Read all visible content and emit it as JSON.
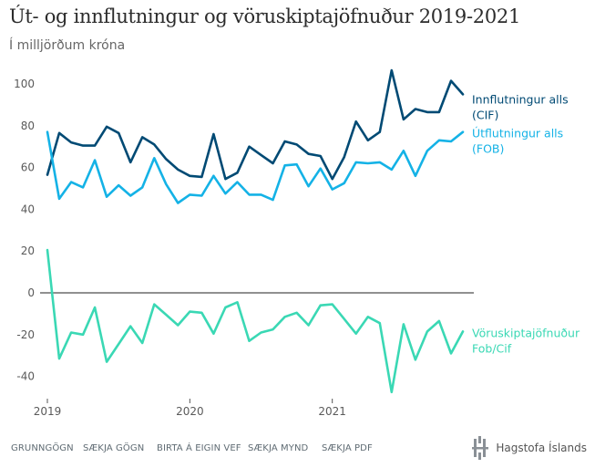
{
  "title": "Út- og innflutningur og vöruskiptajöfnuður 2019-2021",
  "subtitle": "Í milljörðum króna",
  "chart_data": {
    "type": "line",
    "x_tick_labels": [
      "2019",
      "2020",
      "2021"
    ],
    "x_start": "2019-01",
    "y_ticks": [
      100,
      80,
      60,
      40,
      20,
      0,
      -20,
      -40
    ],
    "ylim": [
      -48,
      108
    ],
    "grid": false,
    "legend": "inline labels at line ends",
    "series": [
      {
        "name": "Innflutningur alls (CIF)",
        "label_lines": [
          "Innflutningur alls",
          "(CIF)"
        ],
        "color": "#004a74",
        "values": [
          56.5,
          76.5,
          72,
          70.5,
          70.5,
          79.5,
          76.5,
          62.5,
          74.5,
          71,
          64,
          59,
          56,
          55.5,
          76,
          54.5,
          57.5,
          70,
          66,
          62,
          72.5,
          71,
          66.5,
          65.5,
          54.5,
          65,
          82,
          73,
          77,
          106.5,
          83,
          88,
          86.5,
          86.5,
          101.5,
          95
        ]
      },
      {
        "name": "Útflutningur alls (FOB)",
        "label_lines": [
          "Útflutningur alls",
          "(FOB)"
        ],
        "color": "#14b2e6",
        "values": [
          77,
          45,
          53,
          50.5,
          63.5,
          46,
          51.5,
          46.5,
          50.5,
          64.5,
          52,
          43,
          47,
          46.5,
          56,
          47.5,
          53,
          47,
          47,
          44.5,
          61,
          61.5,
          51,
          59.5,
          49.5,
          52.5,
          62.5,
          62,
          62.5,
          59,
          68,
          56,
          68,
          73,
          72.5,
          77
        ]
      },
      {
        "name": "Vöruskiptajöfnuður Fob/Cif",
        "label_lines": [
          "Vöruskiptajöfnuður",
          "Fob/Cif"
        ],
        "color": "#3ad8b4",
        "values": [
          20.5,
          -31.5,
          -19,
          -20,
          -7,
          -33,
          -24.5,
          -16,
          -24,
          -5.5,
          -10.5,
          -15.5,
          -9,
          -9.5,
          -19.5,
          -7,
          -4.5,
          -23,
          -19,
          -17.5,
          -11.5,
          -9.5,
          -15.5,
          -6,
          -5.5,
          -12.5,
          -19.5,
          -11.5,
          -14.5,
          -47.5,
          -15,
          -32,
          -18.5,
          -13.5,
          -29,
          -18.5
        ]
      }
    ]
  },
  "footer": {
    "links": [
      "GRUNNGÖGN",
      "SÆKJA GÖGN",
      "BIRTA Á EIGIN VEF",
      "SÆKJA MYND",
      "SÆKJA PDF"
    ],
    "logo_text": "Hagstofa Íslands"
  }
}
